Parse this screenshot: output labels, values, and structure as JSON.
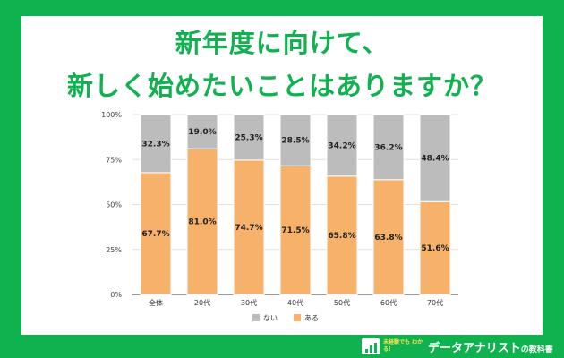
{
  "title": {
    "line1": "新年度に向けて、",
    "line2": "新しく始めたいことはありますか？"
  },
  "chart_data": {
    "type": "bar",
    "stacked": true,
    "categories": [
      "全体",
      "20代",
      "30代",
      "40代",
      "50代",
      "60代",
      "70代"
    ],
    "series": [
      {
        "name": "ある",
        "values": [
          67.7,
          81.0,
          74.7,
          71.5,
          65.8,
          63.8,
          51.6
        ],
        "labels": [
          "67.7%",
          "81.0%",
          "74.7%",
          "71.5%",
          "65.8%",
          "63.8%",
          "51.6%"
        ],
        "color": "#f6b26b"
      },
      {
        "name": "ない",
        "values": [
          32.3,
          19.0,
          25.3,
          28.5,
          34.2,
          36.2,
          48.4
        ],
        "labels": [
          "32.3%",
          "19.0%",
          "25.3%",
          "28.5%",
          "34.2%",
          "36.2%",
          "48.4%"
        ],
        "color": "#bcbcbc"
      }
    ],
    "yticks": [
      "0%",
      "25%",
      "50%",
      "75%",
      "100%"
    ],
    "ylim": [
      0,
      100
    ],
    "legend": [
      "ない",
      "ある"
    ],
    "legend_position": "bottom"
  },
  "brand": {
    "sub": "未経験でも わかる！",
    "name": "データアナリスト",
    "suffix": "の教科書"
  },
  "colors": {
    "green": "#0fb24f",
    "orange": "#f6b26b",
    "gray": "#bcbcbc"
  }
}
